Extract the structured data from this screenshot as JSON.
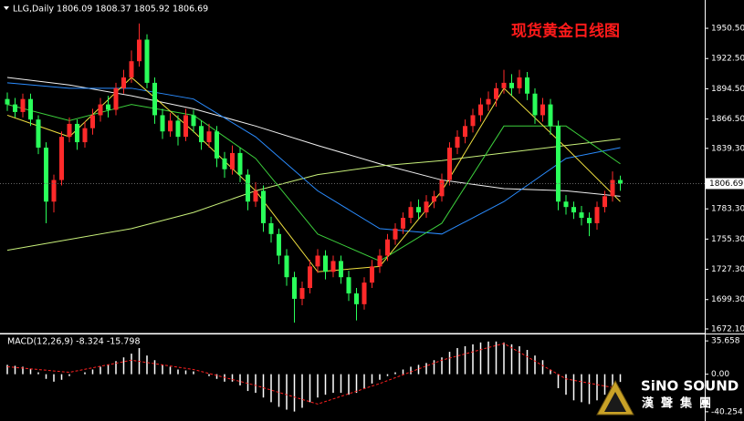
{
  "chart_data": [
    {
      "type": "candlestick",
      "header": "LLG,Daily 1806.09 1808.37 1805.92 1806.69",
      "title": "现货黄金日线图",
      "title_color": "#ff1a1a",
      "up_color": "#ff2a2a",
      "down_color": "#2aff5a",
      "open": [
        1885,
        1880,
        1873,
        1885,
        1866,
        1840,
        1790,
        1810,
        1850,
        1862,
        1845,
        1858,
        1870,
        1880,
        1875,
        1895,
        1905,
        1920,
        1940,
        1900,
        1870,
        1855,
        1865,
        1850,
        1870,
        1860,
        1845,
        1855,
        1830,
        1820,
        1835,
        1815,
        1790,
        1800,
        1770,
        1760,
        1740,
        1720,
        1700,
        1710,
        1730,
        1740,
        1725,
        1735,
        1720,
        1705,
        1695,
        1715,
        1730,
        1740,
        1755,
        1765,
        1775,
        1785,
        1780,
        1790,
        1795,
        1810,
        1840,
        1850,
        1860,
        1870,
        1880,
        1885,
        1895,
        1900,
        1895,
        1905,
        1890,
        1870,
        1880,
        1860,
        1790,
        1785,
        1780,
        1775,
        1770,
        1785,
        1795,
        1810
      ],
      "high": [
        1891,
        1886,
        1890,
        1890,
        1870,
        1845,
        1815,
        1855,
        1868,
        1866,
        1864,
        1876,
        1886,
        1888,
        1900,
        1912,
        1930,
        1955,
        1945,
        1905,
        1876,
        1872,
        1870,
        1876,
        1875,
        1865,
        1862,
        1860,
        1836,
        1842,
        1840,
        1820,
        1808,
        1805,
        1776,
        1765,
        1746,
        1725,
        1716,
        1736,
        1746,
        1745,
        1740,
        1740,
        1726,
        1710,
        1720,
        1736,
        1746,
        1760,
        1770,
        1780,
        1790,
        1792,
        1796,
        1800,
        1816,
        1845,
        1856,
        1866,
        1876,
        1886,
        1892,
        1900,
        1912,
        1908,
        1912,
        1910,
        1895,
        1886,
        1885,
        1865,
        1796,
        1790,
        1786,
        1780,
        1790,
        1800,
        1818,
        1814
      ],
      "low": [
        1874,
        1868,
        1868,
        1860,
        1834,
        1770,
        1780,
        1805,
        1845,
        1838,
        1840,
        1852,
        1864,
        1868,
        1870,
        1890,
        1900,
        1915,
        1895,
        1862,
        1848,
        1850,
        1842,
        1846,
        1854,
        1838,
        1840,
        1822,
        1812,
        1815,
        1808,
        1782,
        1785,
        1762,
        1752,
        1732,
        1712,
        1678,
        1694,
        1705,
        1724,
        1718,
        1720,
        1714,
        1698,
        1680,
        1690,
        1710,
        1724,
        1735,
        1750,
        1760,
        1770,
        1774,
        1775,
        1784,
        1790,
        1805,
        1834,
        1844,
        1854,
        1864,
        1874,
        1878,
        1890,
        1888,
        1890,
        1884,
        1862,
        1864,
        1852,
        1782,
        1778,
        1774,
        1768,
        1758,
        1764,
        1780,
        1790,
        1800
      ],
      "close": [
        1880,
        1873,
        1885,
        1866,
        1840,
        1790,
        1810,
        1850,
        1862,
        1845,
        1858,
        1870,
        1880,
        1875,
        1895,
        1905,
        1920,
        1940,
        1900,
        1870,
        1855,
        1865,
        1850,
        1870,
        1860,
        1845,
        1855,
        1830,
        1820,
        1835,
        1815,
        1790,
        1800,
        1770,
        1760,
        1740,
        1720,
        1700,
        1710,
        1730,
        1740,
        1725,
        1735,
        1720,
        1705,
        1695,
        1715,
        1730,
        1740,
        1755,
        1765,
        1775,
        1785,
        1780,
        1790,
        1795,
        1810,
        1840,
        1850,
        1860,
        1870,
        1880,
        1885,
        1895,
        1900,
        1895,
        1905,
        1890,
        1870,
        1880,
        1860,
        1790,
        1785,
        1780,
        1775,
        1770,
        1785,
        1795,
        1810,
        1806.69
      ],
      "ma_x": [
        0,
        8,
        16,
        24,
        32,
        40,
        48,
        56,
        64,
        72,
        79
      ],
      "series": [
        {
          "color": "#f0f0f0",
          "values": [
            1905,
            1898,
            1888,
            1876,
            1860,
            1842,
            1825,
            1810,
            1802,
            1800,
            1795
          ]
        },
        {
          "color": "#c8f07a",
          "values": [
            1745,
            1755,
            1765,
            1780,
            1800,
            1815,
            1823,
            1828,
            1835,
            1842,
            1848
          ]
        },
        {
          "color": "#2a8cff",
          "values": [
            1900,
            1895,
            1895,
            1885,
            1850,
            1800,
            1765,
            1760,
            1790,
            1830,
            1840
          ]
        },
        {
          "color": "#3ccf3c",
          "values": [
            1880,
            1865,
            1880,
            1870,
            1830,
            1760,
            1735,
            1770,
            1860,
            1860,
            1825
          ]
        },
        {
          "color": "#f0e040",
          "values": [
            1870,
            1850,
            1905,
            1855,
            1800,
            1725,
            1730,
            1800,
            1895,
            1840,
            1790
          ]
        }
      ],
      "last_price": 1806.69,
      "ylim": [
        1668.7,
        1976.7
      ],
      "yticks": [
        {
          "value": 1950.5,
          "label": "1950.50"
        },
        {
          "value": 1922.5,
          "label": "1922.50"
        },
        {
          "value": 1894.5,
          "label": "1894.50"
        },
        {
          "value": 1866.5,
          "label": "1866.50"
        },
        {
          "value": 1839.3,
          "label": "1839.30"
        },
        {
          "value": 1783.3,
          "label": "1783.30"
        },
        {
          "value": 1755.3,
          "label": "1755.30"
        },
        {
          "value": 1727.3,
          "label": "1727.30"
        },
        {
          "value": 1699.3,
          "label": "1699.30"
        },
        {
          "value": 1672.1,
          "label": "1672.10"
        }
      ]
    },
    {
      "type": "macd",
      "label": "MACD(12,26,9) -8.324 -15.798",
      "color": "#ffffff",
      "values": [
        10,
        9,
        8,
        6,
        2,
        -5,
        -8,
        -6,
        -2,
        0,
        2,
        5,
        8,
        10,
        14,
        18,
        22,
        28,
        20,
        15,
        10,
        8,
        5,
        4,
        3,
        0,
        -2,
        -5,
        -8,
        -8,
        -12,
        -18,
        -20,
        -25,
        -30,
        -35,
        -38,
        -40,
        -36,
        -30,
        -25,
        -22,
        -20,
        -20,
        -22,
        -20,
        -15,
        -10,
        -6,
        -2,
        2,
        5,
        8,
        10,
        12,
        15,
        18,
        24,
        28,
        30,
        32,
        34,
        35,
        35,
        34,
        32,
        30,
        26,
        20,
        15,
        5,
        -15,
        -22,
        -28,
        -30,
        -32,
        -28,
        -22,
        -15,
        -8.324
      ],
      "signal": {
        "color": "#ff2020",
        "x": [
          0,
          8,
          16,
          24,
          32,
          40,
          48,
          56,
          64,
          72,
          79
        ],
        "values": [
          8,
          2,
          15,
          5,
          -12,
          -32,
          -10,
          15,
          33,
          -5,
          -15.798
        ]
      },
      "ylim": [
        -50.15,
        42.6
      ],
      "yticks": [
        35.658,
        {
          "value": 0,
          "label": "0.00"
        },
        -40.254
      ]
    }
  ],
  "logo": {
    "name": "SiNO SOUND",
    "chinese": "漢聲集團"
  }
}
